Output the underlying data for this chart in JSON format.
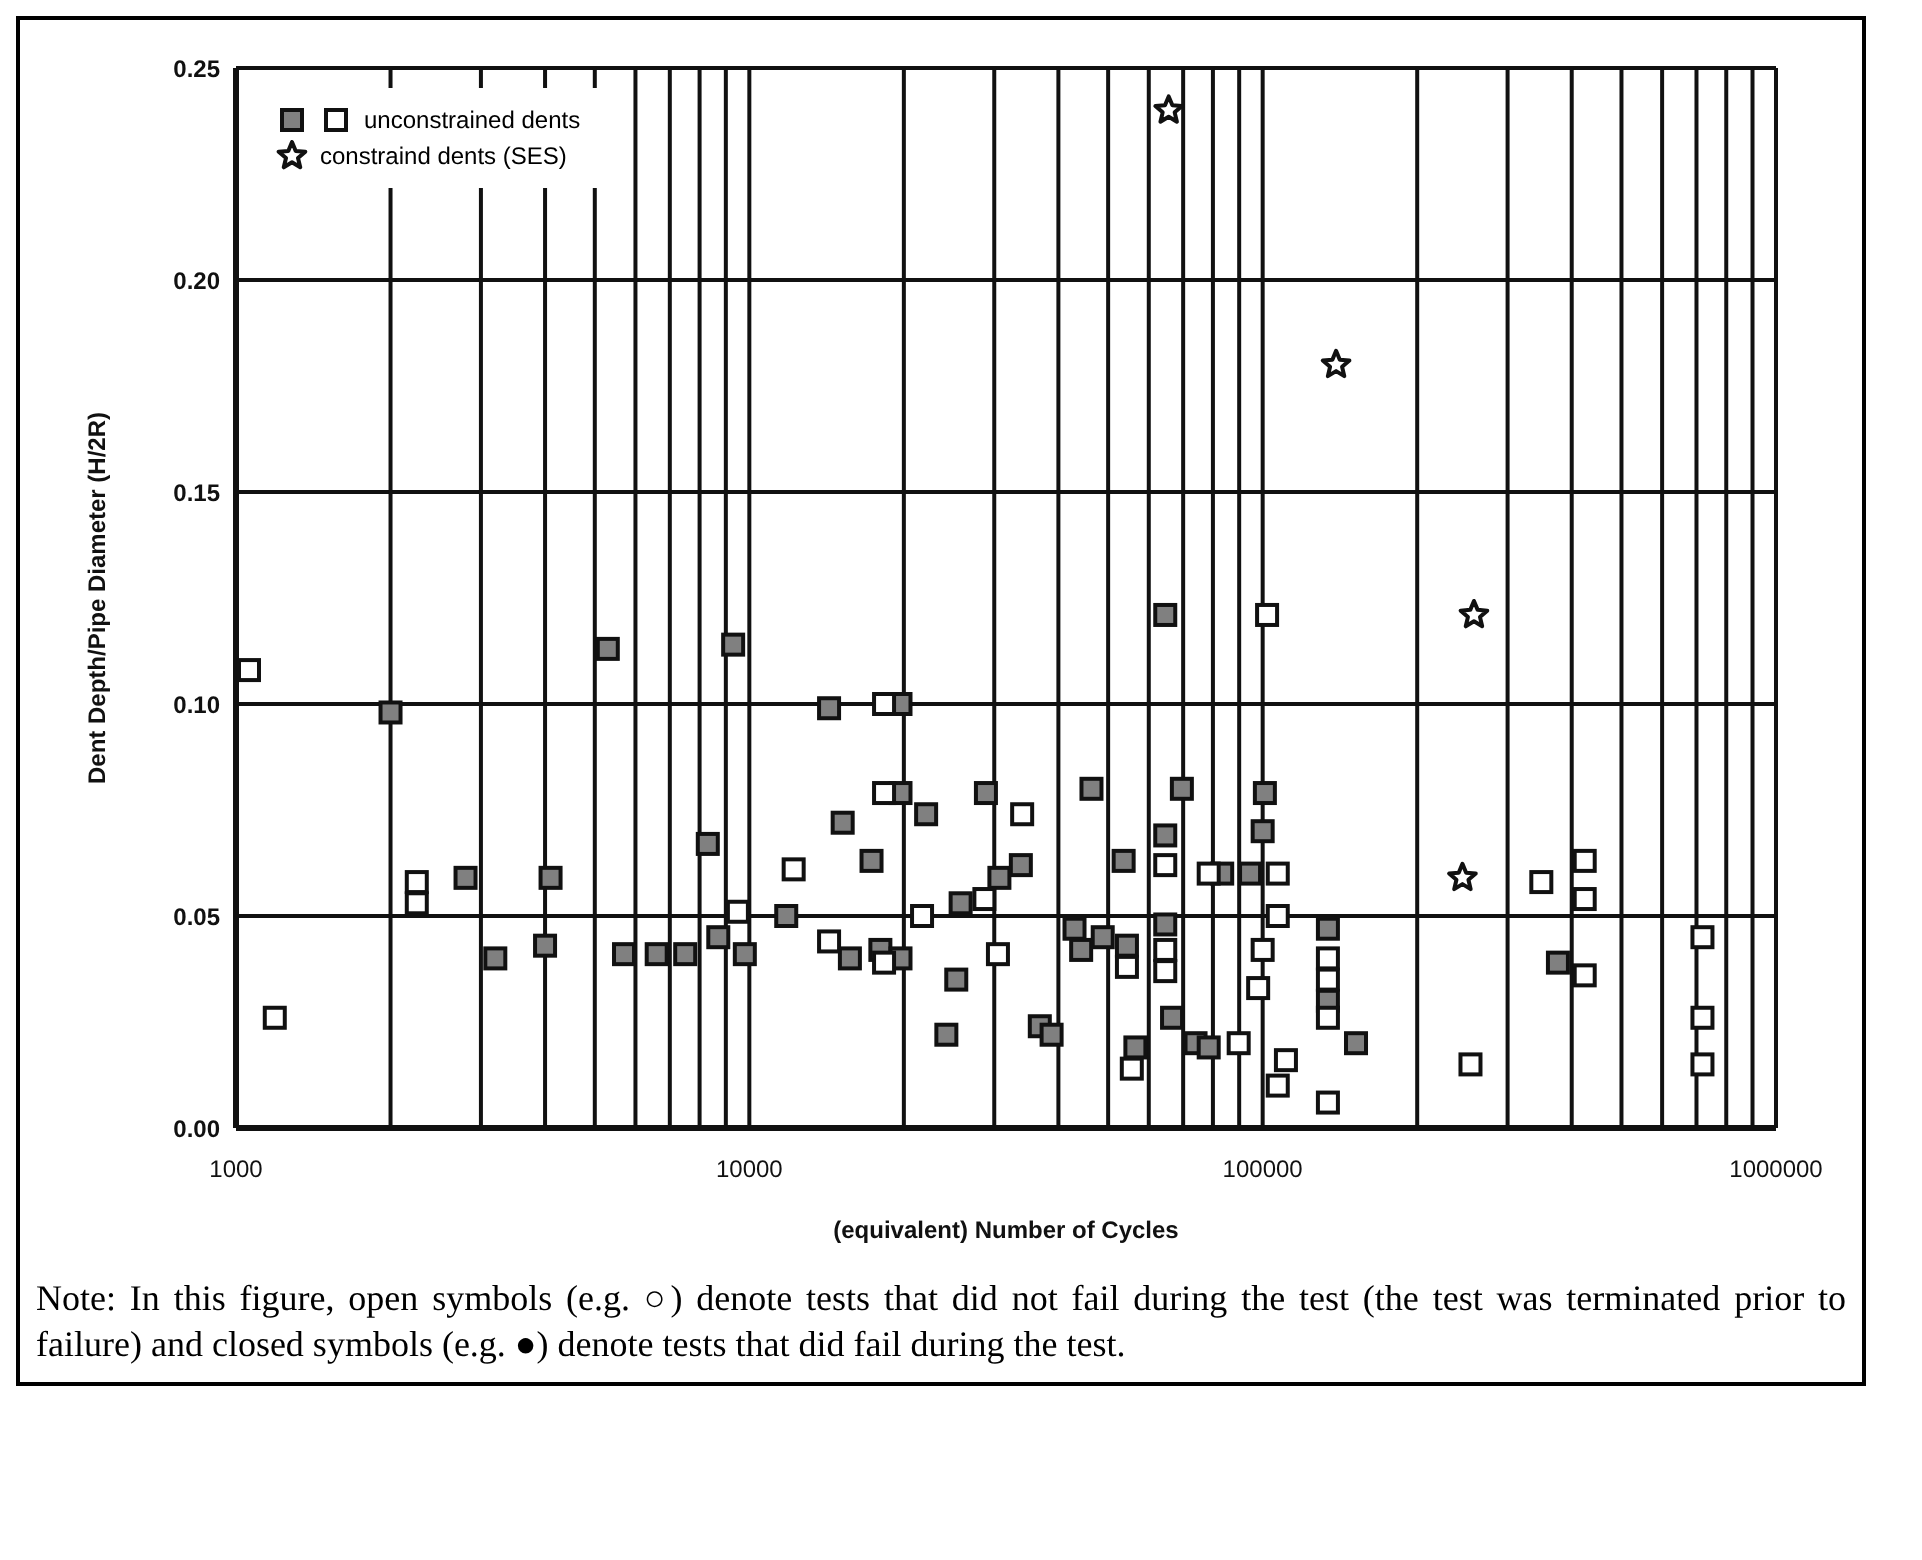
{
  "chart_data": {
    "type": "scatter",
    "xlabel": "(equivalent) Number of Cycles",
    "ylabel": "Dent Depth/Pipe Diameter (H/2R)",
    "log": "x",
    "xlim": [
      1000,
      1000000
    ],
    "xticks": [
      1000,
      {
        "value": 2000,
        "label": null
      },
      {
        "value": 3000,
        "label": null
      },
      {
        "value": 4000,
        "label": null
      },
      {
        "value": 5000,
        "label": null
      },
      {
        "value": 6000,
        "label": null
      },
      {
        "value": 7000,
        "label": null
      },
      {
        "value": 8000,
        "label": null
      },
      {
        "value": 9000,
        "label": null
      },
      10000,
      {
        "value": 20000,
        "label": null
      },
      {
        "value": 30000,
        "label": null
      },
      {
        "value": 40000,
        "label": null
      },
      {
        "value": 50000,
        "label": null
      },
      {
        "value": 60000,
        "label": null
      },
      {
        "value": 70000,
        "label": null
      },
      {
        "value": 80000,
        "label": null
      },
      {
        "value": 90000,
        "label": null
      },
      100000,
      {
        "value": 200000,
        "label": null
      },
      {
        "value": 300000,
        "label": null
      },
      {
        "value": 400000,
        "label": null
      },
      {
        "value": 500000,
        "label": null
      },
      {
        "value": 600000,
        "label": null
      },
      {
        "value": 700000,
        "label": null
      },
      {
        "value": 800000,
        "label": null
      },
      {
        "value": 900000,
        "label": null
      },
      1000000
    ],
    "ylim": [
      0,
      0.25
    ],
    "yticks": [
      {
        "value": 0,
        "label": "0.00"
      },
      {
        "value": 0.05,
        "label": "0.05"
      },
      {
        "value": 0.1,
        "label": "0.10"
      },
      {
        "value": 0.15,
        "label": "0.15"
      },
      {
        "value": 0.2,
        "label": "0.20"
      },
      {
        "value": 0.25,
        "label": "0.25"
      }
    ],
    "grid": true,
    "legend": "top left",
    "series": [
      {
        "name": "unconstrained dents",
        "marker": "square",
        "color": "#ffffff",
        "x": [
          1060,
          2250,
          2250,
          1190,
          9500,
          12200,
          18300,
          18300,
          21700,
          14300,
          18300,
          34000,
          28700,
          30500,
          54400,
          55600,
          64600,
          64600,
          64600,
          89800,
          78500,
          107000,
          102000,
          107000,
          100000,
          98000,
          111000,
          107000,
          349000,
          424000,
          424000,
          424000,
          719000,
          719000,
          719000,
          254000,
          134000,
          134000,
          134000,
          134000
        ],
        "values": [
          0.108,
          0.058,
          0.053,
          0.026,
          0.051,
          0.061,
          0.1,
          0.079,
          0.05,
          0.044,
          0.039,
          0.074,
          0.054,
          0.041,
          0.038,
          0.014,
          0.062,
          0.042,
          0.037,
          0.02,
          0.06,
          0.06,
          0.121,
          0.05,
          0.042,
          0.033,
          0.016,
          0.01,
          0.058,
          0.063,
          0.054,
          0.036,
          0.045,
          0.026,
          0.015,
          0.015,
          0.04,
          0.035,
          0.026,
          0.006
        ]
      },
      {
        "marker": "square",
        "color": "#808080",
        "x": [
          2000,
          2800,
          3200,
          4100,
          4000,
          5300,
          5700,
          6600,
          7500,
          8300,
          8700,
          9800,
          9300,
          11800,
          14300,
          19700,
          19700,
          22100,
          15200,
          17300,
          15700,
          18000,
          19700,
          25300,
          24200,
          28900,
          33800,
          30700,
          25800,
          46400,
          53600,
          43000,
          44300,
          48800,
          54400,
          36800,
          38800,
          56500,
          64600,
          69600,
          64600,
          64600,
          66600,
          74000,
          78500,
          83400,
          94500,
          101000,
          100000,
          376000,
          134000,
          134000,
          152000
        ],
        "values": [
          0.098,
          0.059,
          0.04,
          0.059,
          0.043,
          0.113,
          0.041,
          0.041,
          0.041,
          0.067,
          0.045,
          0.041,
          0.114,
          0.05,
          0.099,
          0.1,
          0.079,
          0.074,
          0.072,
          0.063,
          0.04,
          0.042,
          0.04,
          0.035,
          0.022,
          0.079,
          0.062,
          0.059,
          0.053,
          0.08,
          0.063,
          0.047,
          0.042,
          0.045,
          0.043,
          0.024,
          0.022,
          0.019,
          0.121,
          0.08,
          0.069,
          0.048,
          0.026,
          0.02,
          0.019,
          0.06,
          0.06,
          0.079,
          0.07,
          0.039,
          0.047,
          0.03,
          0.02
        ]
      },
      {
        "name": "constraind dents (SES)",
        "marker": "star",
        "color": "#ffffff",
        "x": [
          65600,
          139000,
          258000,
          245000
        ],
        "values": [
          0.24,
          0.18,
          0.121,
          0.059
        ]
      }
    ],
    "annotations": [
      "Note: In this figure, open symbols (e.g. ○) denote tests that did not fail during the test (the test was terminated prior to failure) and closed symbols (e.g. ●) denote tests that did fail during the test."
    ]
  }
}
